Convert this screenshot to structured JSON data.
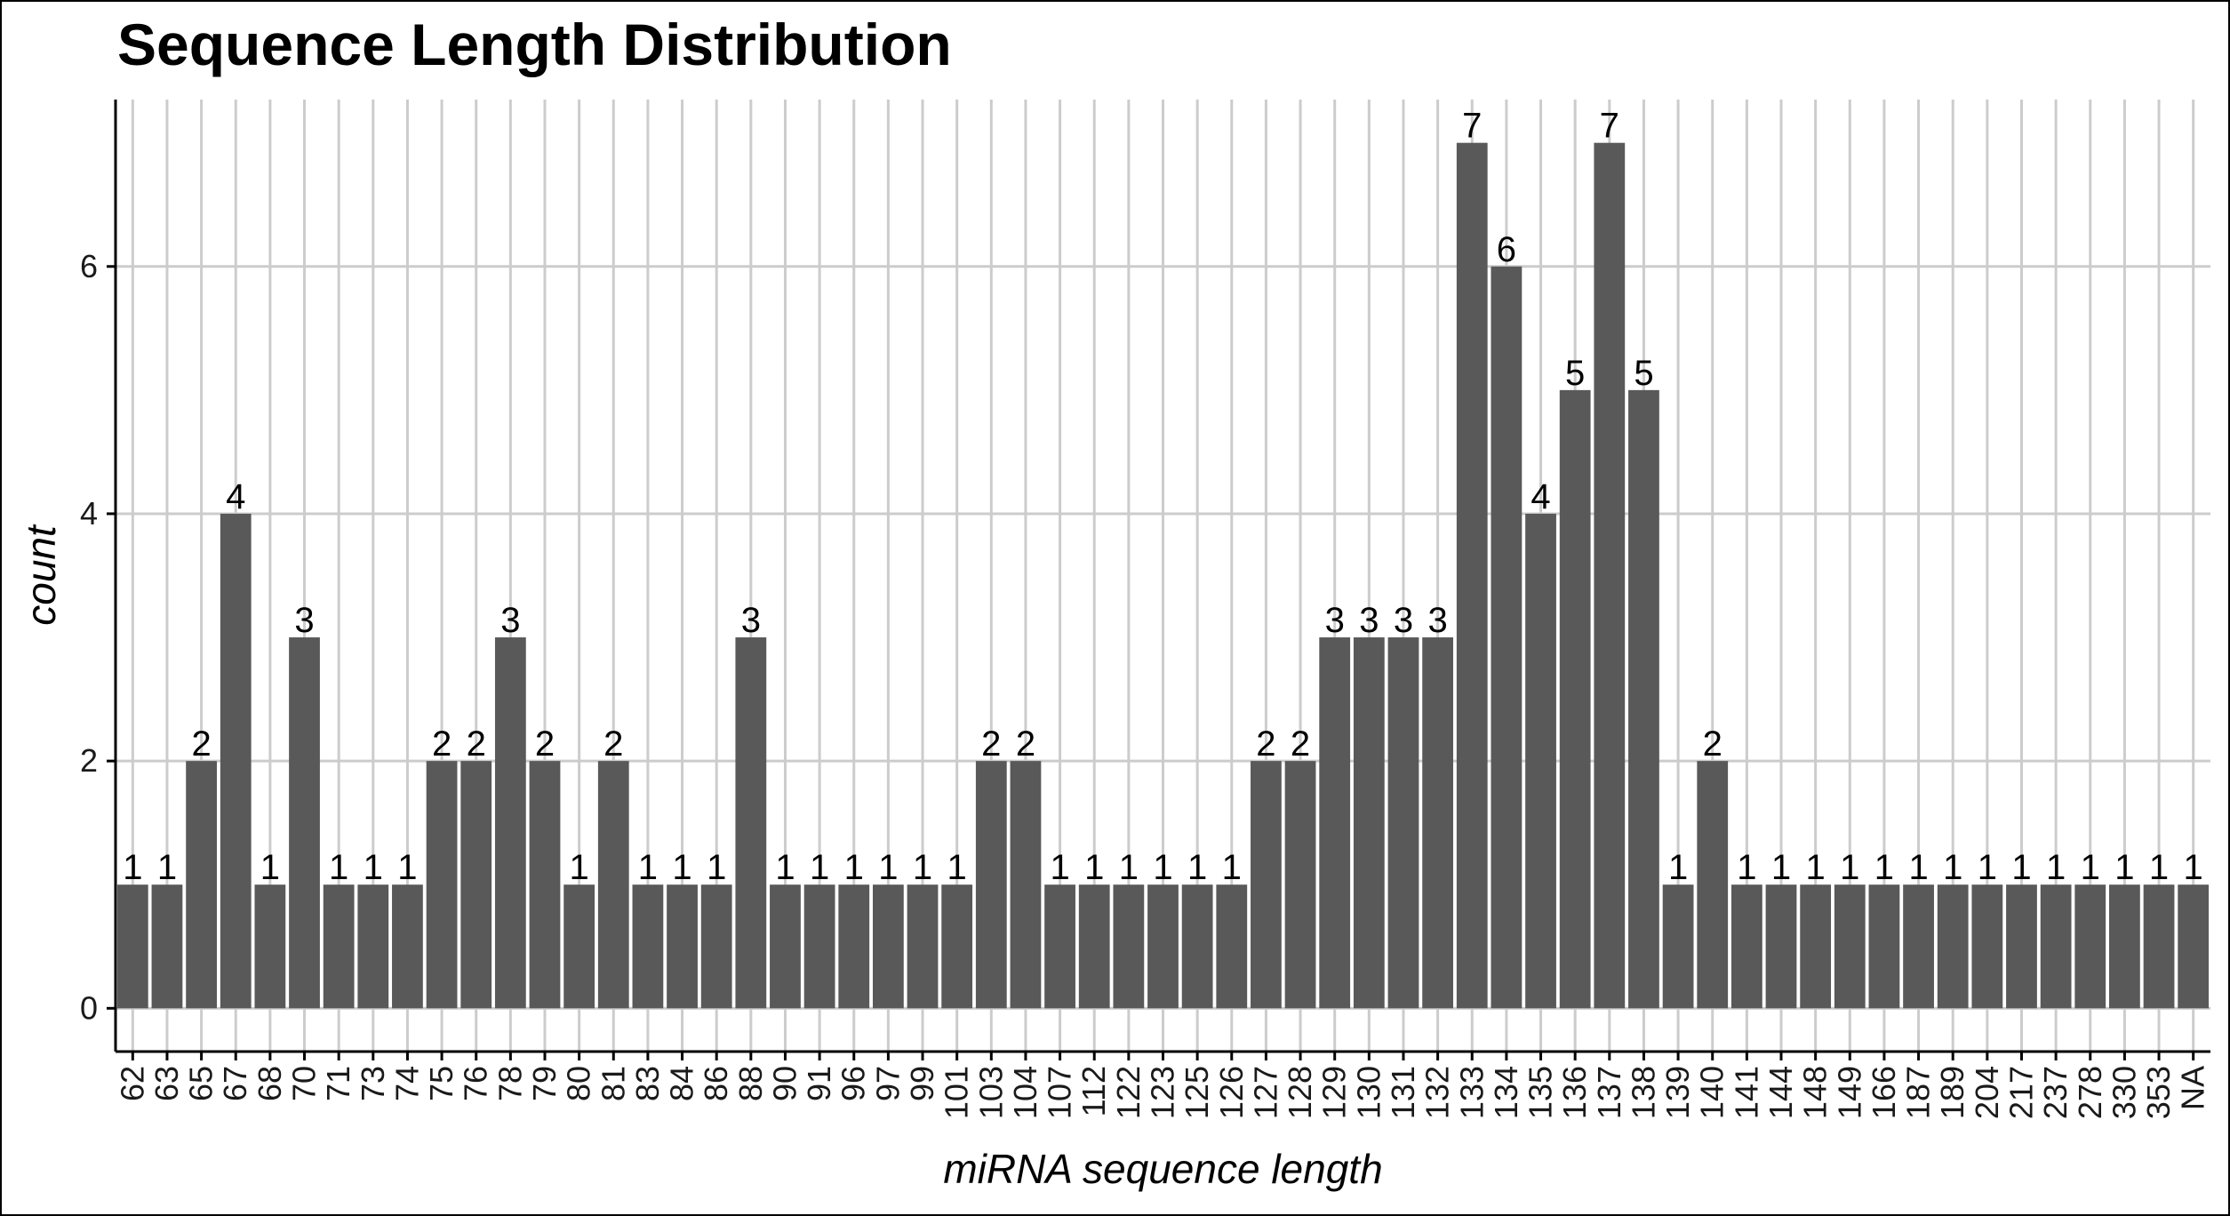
{
  "chart_data": {
    "type": "bar",
    "title": "Sequence Length Distribution",
    "xlabel": "miRNA sequence length",
    "ylabel": "count",
    "categories": [
      "62",
      "63",
      "65",
      "67",
      "68",
      "70",
      "71",
      "73",
      "74",
      "75",
      "76",
      "78",
      "79",
      "80",
      "81",
      "83",
      "84",
      "86",
      "88",
      "90",
      "91",
      "96",
      "97",
      "99",
      "101",
      "103",
      "104",
      "107",
      "112",
      "122",
      "123",
      "125",
      "126",
      "127",
      "128",
      "129",
      "130",
      "131",
      "132",
      "133",
      "134",
      "135",
      "136",
      "137",
      "138",
      "139",
      "140",
      "141",
      "144",
      "148",
      "149",
      "166",
      "187",
      "189",
      "204",
      "217",
      "237",
      "278",
      "330",
      "353",
      "NA"
    ],
    "values": [
      1,
      1,
      2,
      4,
      1,
      3,
      1,
      1,
      1,
      2,
      2,
      3,
      2,
      1,
      2,
      1,
      1,
      1,
      3,
      1,
      1,
      1,
      1,
      1,
      1,
      2,
      2,
      1,
      1,
      1,
      1,
      1,
      1,
      2,
      2,
      3,
      3,
      3,
      3,
      7,
      6,
      4,
      5,
      7,
      5,
      1,
      2,
      1,
      1,
      1,
      1,
      1,
      1,
      1,
      1,
      1,
      1,
      1,
      1,
      1,
      1
    ],
    "yticks": [
      0,
      2,
      4,
      6
    ],
    "ylim": [
      -0.35,
      7.35
    ],
    "grid": true,
    "colors": {
      "bar": "#595959",
      "grid": "#cccccc",
      "axis": "#000000"
    }
  }
}
